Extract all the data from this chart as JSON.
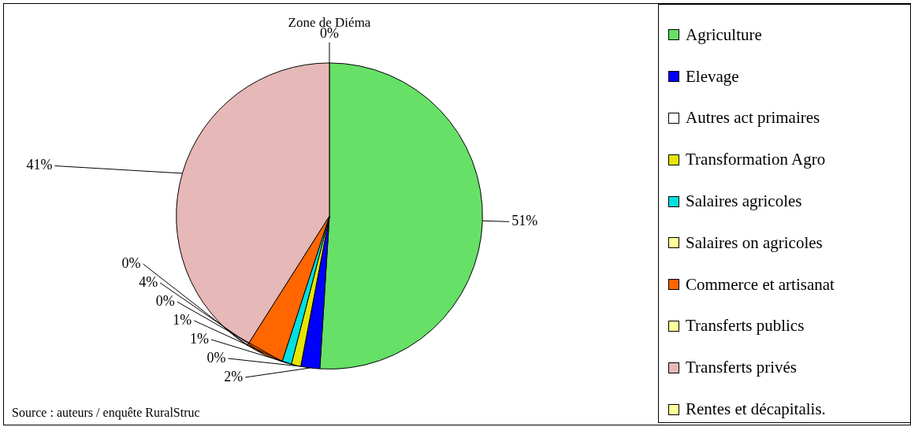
{
  "chart_data": {
    "type": "pie",
    "title": "Zone de Diéma",
    "categories": [
      "Agriculture",
      "Elevage",
      "Autres act primaires",
      "Transformation Agro",
      "Salaires agricoles",
      "Salaires on agricoles",
      "Commerce et artisanat",
      "Transferts publics",
      "Transferts privés",
      "Rentes et décapitalis."
    ],
    "values": [
      51,
      2,
      0,
      1,
      1,
      0,
      4,
      0,
      41,
      0
    ],
    "colors": [
      "#66e066",
      "#0000ff",
      "#ffffff",
      "#e6e600",
      "#00e0e0",
      "#ffff99",
      "#ff6600",
      "#ffff99",
      "#e6b8b8",
      "#ffff99"
    ],
    "value_labels": [
      "51%",
      "2%",
      "0%",
      "1%",
      "1%",
      "0%",
      "4%",
      "0%",
      "41%",
      "0%"
    ],
    "legend": "right",
    "annotations": [
      "Source : auteurs / enquête RuralStruc"
    ]
  }
}
